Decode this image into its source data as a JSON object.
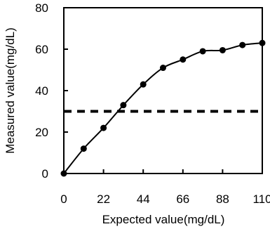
{
  "chart_data": {
    "type": "line",
    "title": "",
    "xlabel": "Expected value(mg/dL)",
    "ylabel": "Measured value(mg/dL)",
    "xlim": [
      0,
      110
    ],
    "ylim": [
      0,
      80
    ],
    "x_ticks": [
      "0",
      "22",
      "44",
      "66",
      "88",
      "110"
    ],
    "y_ticks": [
      "0",
      "20",
      "40",
      "60",
      "80"
    ],
    "grid": false,
    "legend": "none",
    "series": [
      {
        "x": [
          0,
          11,
          22,
          33,
          44,
          55,
          66,
          77,
          88,
          99,
          110
        ],
        "y": [
          0,
          12,
          22,
          33,
          43,
          51,
          55,
          59,
          59.5,
          62,
          63
        ],
        "marker": "circle",
        "color": "#000000"
      }
    ],
    "reference_line": {
      "y": 30,
      "style": "dashed",
      "color": "#000000"
    }
  }
}
